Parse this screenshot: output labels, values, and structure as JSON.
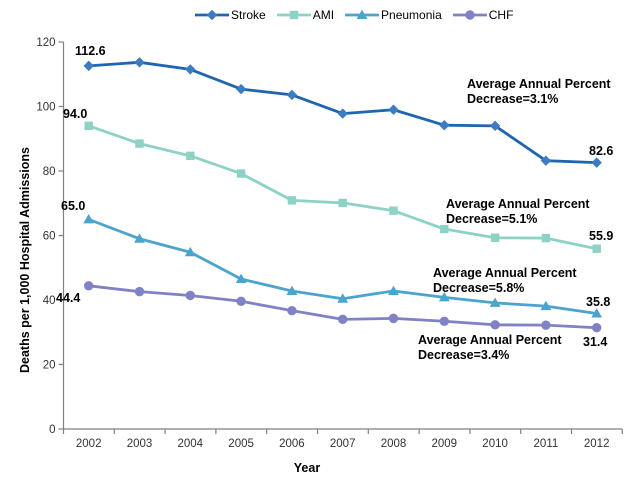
{
  "chart_data": {
    "type": "line",
    "title": "",
    "xlabel": "Year",
    "ylabel": "Deaths per 1,000 Hospital Admissions",
    "ylim": [
      0,
      120
    ],
    "yticks": [
      "0",
      "20",
      "40",
      "60",
      "80",
      "100",
      "120"
    ],
    "grid": false,
    "legend_position": "top",
    "categories": [
      "2002",
      "2003",
      "2004",
      "2005",
      "2006",
      "2007",
      "2008",
      "2009",
      "2010",
      "2011",
      "2012"
    ],
    "series": [
      {
        "name": "Stroke",
        "marker": "diamond",
        "color": "#1F65B0",
        "marker_color": "#3D7CC0",
        "values": [
          112.6,
          113.7,
          111.5,
          105.4,
          103.6,
          97.8,
          99.0,
          94.2,
          94.0,
          83.2,
          82.6
        ],
        "first_label": "112.6",
        "last_label": "82.6",
        "annotation": {
          "line1": "Average Annual Percent",
          "line2": "Decrease=3.1%"
        }
      },
      {
        "name": "AMI",
        "marker": "square",
        "color": "#8DD2C5",
        "marker_color": "#8DD2C5",
        "values": [
          94.0,
          88.5,
          84.7,
          79.2,
          70.9,
          70.1,
          67.7,
          62.0,
          59.3,
          59.2,
          55.9
        ],
        "first_label": "94.0",
        "last_label": "55.9",
        "annotation": {
          "line1": "Average Annual Percent",
          "line2": "Decrease=5.1%"
        }
      },
      {
        "name": "Pneumonia",
        "marker": "triangle",
        "color": "#4BA4CE",
        "marker_color": "#4BA4CE",
        "values": [
          65.0,
          59.0,
          54.8,
          46.5,
          42.8,
          40.4,
          42.8,
          40.8,
          39.1,
          38.1,
          35.8
        ],
        "first_label": "65.0",
        "last_label": "35.8",
        "annotation": {
          "line1": "Average Annual Percent",
          "line2": "Decrease=5.8%"
        }
      },
      {
        "name": "CHF",
        "marker": "circle",
        "color": "#7F82C5",
        "marker_color": "#7F82C5",
        "values": [
          44.4,
          42.6,
          41.4,
          39.6,
          36.7,
          34.0,
          34.3,
          33.4,
          32.3,
          32.2,
          31.4
        ],
        "first_label": "44.4",
        "last_label": "31.4",
        "annotation": {
          "line1": "Average Annual Percent",
          "line2": "Decrease=3.4%"
        }
      }
    ],
    "axis_color": "#808080",
    "tick_text_color": "#333333"
  }
}
